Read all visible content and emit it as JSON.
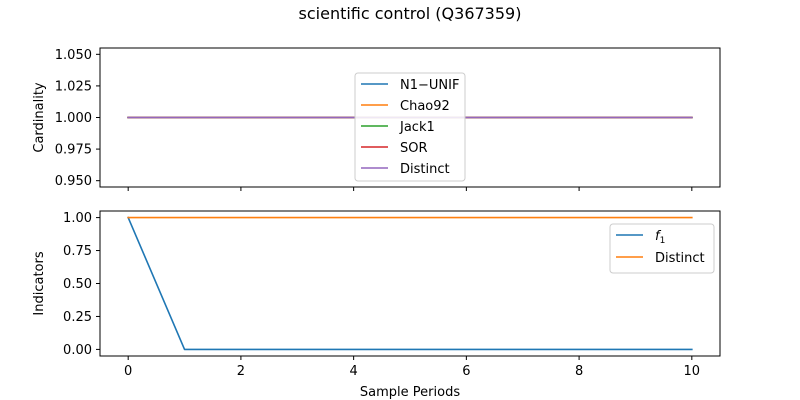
{
  "figure_title": "scientific control (Q367359)",
  "colors": {
    "blue": "#1f77b4",
    "orange": "#ff7f0e",
    "green": "#2ca02c",
    "red": "#d62728",
    "purple": "#9467bd"
  },
  "chart_data": [
    {
      "type": "line",
      "title": "",
      "xlabel": "",
      "ylabel": "Cardinality",
      "xlim": [
        -0.5,
        10.5
      ],
      "ylim": [
        0.945,
        1.055
      ],
      "xticks": [
        0,
        2,
        4,
        6,
        8,
        10
      ],
      "xtick_labels": [
        "",
        "",
        "",
        "",
        "",
        ""
      ],
      "yticks": [
        0.95,
        0.975,
        1.0,
        1.025,
        1.05
      ],
      "ytick_labels": [
        "0.950",
        "0.975",
        "1.000",
        "1.025",
        "1.050"
      ],
      "grid": false,
      "legend_position": "center",
      "x": [
        0,
        1,
        2,
        3,
        4,
        5,
        6,
        7,
        8,
        9,
        10
      ],
      "series": [
        {
          "name": "N1−UNIF",
          "color": "#1f77b4",
          "values": [
            1,
            1,
            1,
            1,
            1,
            1,
            1,
            1,
            1,
            1,
            1
          ]
        },
        {
          "name": "Chao92",
          "color": "#ff7f0e",
          "values": [
            1,
            1,
            1,
            1,
            1,
            1,
            1,
            1,
            1,
            1,
            1
          ]
        },
        {
          "name": "Jack1",
          "color": "#2ca02c",
          "values": [
            1,
            1,
            1,
            1,
            1,
            1,
            1,
            1,
            1,
            1,
            1
          ]
        },
        {
          "name": "SOR",
          "color": "#d62728",
          "values": [
            1,
            1,
            1,
            1,
            1,
            1,
            1,
            1,
            1,
            1,
            1
          ]
        },
        {
          "name": "Distinct",
          "color": "#9467bd",
          "values": [
            1,
            1,
            1,
            1,
            1,
            1,
            1,
            1,
            1,
            1,
            1
          ]
        }
      ]
    },
    {
      "type": "line",
      "title": "",
      "xlabel": "Sample Periods",
      "ylabel": "Indicators",
      "xlim": [
        -0.5,
        10.5
      ],
      "ylim": [
        -0.05,
        1.05
      ],
      "xticks": [
        0,
        2,
        4,
        6,
        8,
        10
      ],
      "xtick_labels": [
        "0",
        "2",
        "4",
        "6",
        "8",
        "10"
      ],
      "yticks": [
        0.0,
        0.25,
        0.5,
        0.75,
        1.0
      ],
      "ytick_labels": [
        "0.00",
        "0.25",
        "0.50",
        "0.75",
        "1.00"
      ],
      "grid": false,
      "legend_position": "upper right",
      "x": [
        0,
        1,
        2,
        3,
        4,
        5,
        6,
        7,
        8,
        9,
        10
      ],
      "series": [
        {
          "name": "f",
          "name_subscript": "1",
          "color": "#1f77b4",
          "values": [
            1,
            0,
            0,
            0,
            0,
            0,
            0,
            0,
            0,
            0,
            0
          ]
        },
        {
          "name": "Distinct",
          "color": "#ff7f0e",
          "values": [
            1,
            1,
            1,
            1,
            1,
            1,
            1,
            1,
            1,
            1,
            1
          ]
        }
      ]
    }
  ]
}
